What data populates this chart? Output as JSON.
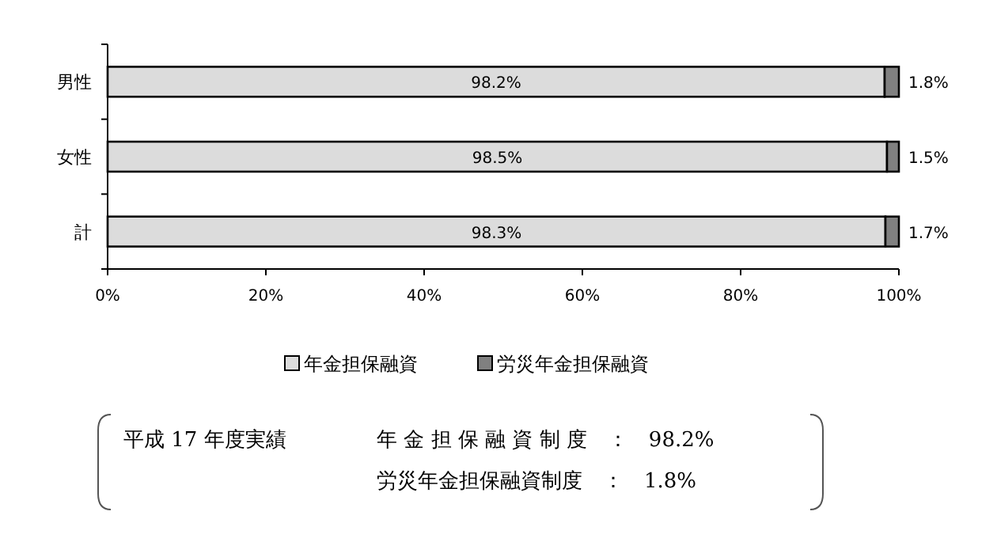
{
  "chart_data": {
    "type": "bar",
    "orientation": "horizontal",
    "stacked": true,
    "categories": [
      "男性",
      "女性",
      "計"
    ],
    "series": [
      {
        "name": "年金担保融資",
        "color": "#dcdcdc",
        "values": [
          98.2,
          98.5,
          98.3
        ],
        "value_labels": [
          "98.2%",
          "98.5%",
          "98.3%"
        ]
      },
      {
        "name": "労災年金担保融資",
        "color": "#808080",
        "values": [
          1.8,
          1.5,
          1.7
        ],
        "value_labels": [
          "1.8%",
          "1.5%",
          "1.7%"
        ]
      }
    ],
    "xlim": [
      0,
      100
    ],
    "xticks": [
      {
        "value": 0,
        "label": "0%"
      },
      {
        "value": 20,
        "label": "20%"
      },
      {
        "value": 40,
        "label": "40%"
      },
      {
        "value": 60,
        "label": "60%"
      },
      {
        "value": 80,
        "label": "80%"
      },
      {
        "value": 100,
        "label": "100%"
      }
    ],
    "legend": "bottom",
    "grid": false,
    "annotations": [
      "平成 17 年度実績",
      "年 金 担 保 融 資 制 度　：　98.2%",
      "労災年金担保融資制度　：　1.8%"
    ]
  }
}
